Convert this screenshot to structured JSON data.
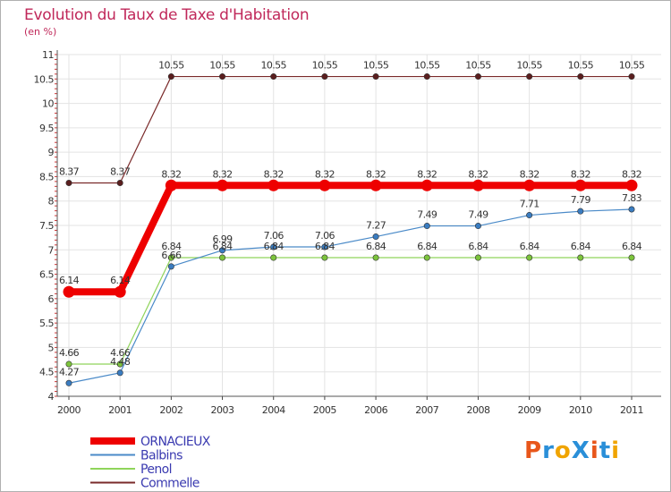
{
  "title": "Evolution du Taux de Taxe d'Habitation",
  "subtitle": "(en %)",
  "logo": {
    "text": "ProXiti",
    "letters": [
      "P",
      "r",
      "o",
      "X",
      "i",
      "t",
      "i"
    ],
    "colors": [
      "#e8561a",
      "#2a8fd8",
      "#f0a400",
      "#2a8fd8",
      "#e8561a",
      "#2a8fd8",
      "#f0a400"
    ]
  },
  "chart_data": {
    "type": "line",
    "x": [
      "2000",
      "2001",
      "2002",
      "2003",
      "2004",
      "2005",
      "2006",
      "2007",
      "2008",
      "2009",
      "2010",
      "2011"
    ],
    "ylim": [
      4,
      11
    ],
    "yticks": [
      "4",
      "4.5",
      "5",
      "5.5",
      "6",
      "6.5",
      "7",
      "7.5",
      "8",
      "8.5",
      "9",
      "9.5",
      "10",
      "10.5",
      "11"
    ],
    "grid": true,
    "series": [
      {
        "name": "Commelle",
        "color": "#7a2a2a",
        "marker": "#5a1e1e",
        "thick": false,
        "values": [
          8.37,
          8.37,
          10.55,
          10.55,
          10.55,
          10.55,
          10.55,
          10.55,
          10.55,
          10.55,
          10.55,
          10.55
        ],
        "labels": [
          "8.37",
          "8.37",
          "10.55",
          "10.55",
          "10.55",
          "10.55",
          "10.55",
          "10.55",
          "10.55",
          "10.55",
          "10.55",
          "10.55"
        ]
      },
      {
        "name": "Penol",
        "color": "#8fd45a",
        "marker": "#7cc43c",
        "thick": false,
        "values": [
          4.66,
          4.66,
          6.84,
          6.84,
          6.84,
          6.84,
          6.84,
          6.84,
          6.84,
          6.84,
          6.84,
          6.84
        ],
        "labels": [
          "4.66",
          "4.66",
          "6.84",
          "6.84",
          "6.84",
          "6.84",
          "6.84",
          "6.84",
          "6.84",
          "6.84",
          "6.84",
          "6.84"
        ]
      },
      {
        "name": "Balbins",
        "color": "#4a8ac8",
        "marker": "#3a7cc0",
        "thick": false,
        "values": [
          4.27,
          4.48,
          6.66,
          6.99,
          7.06,
          7.06,
          7.27,
          7.49,
          7.49,
          7.71,
          7.79,
          7.83
        ],
        "labels": [
          "4.27",
          "4.48",
          "6.66",
          "6.99",
          "7.06",
          "7.06",
          "7.27",
          "7.49",
          "7.49",
          "7.71",
          "7.79",
          "7.83"
        ]
      },
      {
        "name": "ORNACIEUX",
        "color": "#ee0000",
        "marker": "#ee0000",
        "thick": true,
        "values": [
          6.14,
          6.14,
          8.32,
          8.32,
          8.32,
          8.32,
          8.32,
          8.32,
          8.32,
          8.32,
          8.32,
          8.32
        ],
        "labels": [
          "6.14",
          "6.14",
          "8.32",
          "8.32",
          "8.32",
          "8.32",
          "8.32",
          "8.32",
          "8.32",
          "8.32",
          "8.32",
          "8.32"
        ]
      }
    ],
    "legend": [
      {
        "name": "ORNACIEUX",
        "color": "#ee0000",
        "thick": true
      },
      {
        "name": "Balbins",
        "color": "#4a8ac8",
        "thick": false
      },
      {
        "name": "Penol",
        "color": "#8fd45a",
        "thick": false
      },
      {
        "name": "Commelle",
        "color": "#7a2a2a",
        "thick": false
      }
    ],
    "legend_position": "bottom-left"
  }
}
